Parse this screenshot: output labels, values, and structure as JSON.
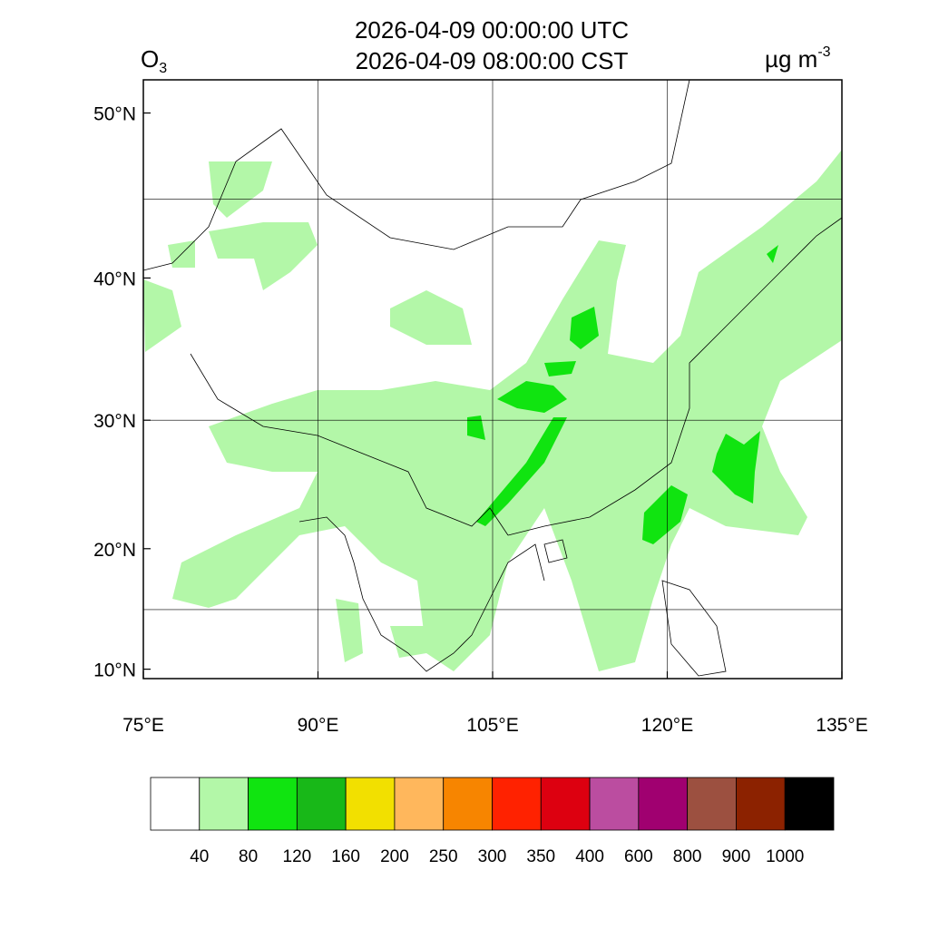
{
  "header": {
    "title_lines": [
      "2026-04-09 00:00:00 UTC",
      "2026-04-09 08:00:00 CST"
    ],
    "variable": {
      "symbol": "O",
      "subscript": "3"
    },
    "units": {
      "text": "µg m",
      "superscript": "-3"
    }
  },
  "map": {
    "lon_range": [
      75,
      135
    ],
    "lat_range": [
      9.2,
      51.8
    ],
    "lon_ticks": [
      {
        "value": 75,
        "label": "75°E"
      },
      {
        "value": 90,
        "label": "90°E"
      },
      {
        "value": 105,
        "label": "105°E"
      },
      {
        "value": 120,
        "label": "120°E"
      },
      {
        "value": 135,
        "label": "135°E"
      }
    ],
    "lat_ticks": [
      {
        "value": 10,
        "label": "10°N"
      },
      {
        "value": 20,
        "label": "20°N"
      },
      {
        "value": 30,
        "label": "30°N"
      },
      {
        "value": 40,
        "label": "40°N"
      },
      {
        "value": 50,
        "label": "50°N"
      }
    ],
    "grid_lon": [
      90,
      105,
      120
    ],
    "grid_lat": [
      15,
      30,
      45
    ]
  },
  "colorbar": {
    "colors": [
      "#ffffff",
      "#b3f7a8",
      "#10e410",
      "#18b818",
      "#f2e000",
      "#ffb75c",
      "#f78500",
      "#ff2200",
      "#dd0010",
      "#bb4da0",
      "#a00070",
      "#9c5040",
      "#8c2200",
      "#000000"
    ],
    "labels": [
      "40",
      "80",
      "120",
      "160",
      "200",
      "250",
      "300",
      "350",
      "400",
      "600",
      "800",
      "900",
      "1000"
    ]
  }
}
